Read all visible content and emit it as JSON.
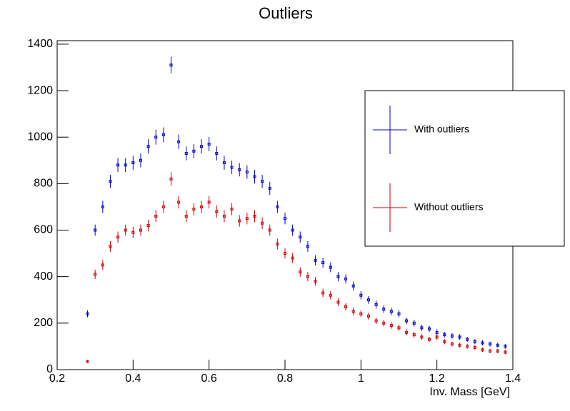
{
  "chart_data": {
    "type": "errorbar",
    "title": "Outliers",
    "x_label": "Inv. Mass [GeV]",
    "x": [
      0.28,
      0.3,
      0.32,
      0.34,
      0.36,
      0.38,
      0.4,
      0.42,
      0.44,
      0.46,
      0.48,
      0.5,
      0.52,
      0.54,
      0.56,
      0.58,
      0.6,
      0.62,
      0.64,
      0.66,
      0.68,
      0.7,
      0.72,
      0.74,
      0.76,
      0.78,
      0.8,
      0.82,
      0.84,
      0.86,
      0.88,
      0.9,
      0.92,
      0.94,
      0.96,
      0.98,
      1.0,
      1.02,
      1.04,
      1.06,
      1.08,
      1.1,
      1.12,
      1.14,
      1.16,
      1.18,
      1.2,
      1.22,
      1.24,
      1.26,
      1.28,
      1.3,
      1.32,
      1.34,
      1.36,
      1.38
    ],
    "series": [
      {
        "name": "With outliers",
        "color": "#0000cc",
        "values": [
          240,
          600,
          700,
          810,
          880,
          880,
          890,
          900,
          960,
          1000,
          1010,
          1310,
          980,
          930,
          940,
          960,
          970,
          930,
          890,
          870,
          860,
          850,
          830,
          810,
          780,
          700,
          650,
          600,
          570,
          530,
          470,
          460,
          440,
          400,
          390,
          360,
          320,
          300,
          280,
          260,
          250,
          240,
          210,
          200,
          180,
          175,
          160,
          150,
          145,
          140,
          130,
          120,
          115,
          110,
          105,
          100
        ],
        "errors": [
          15,
          24,
          26,
          28,
          30,
          30,
          30,
          30,
          31,
          32,
          32,
          36,
          31,
          30,
          31,
          31,
          31,
          30,
          30,
          29,
          29,
          29,
          29,
          28,
          28,
          26,
          25,
          24,
          24,
          23,
          22,
          21,
          21,
          20,
          20,
          19,
          18,
          17,
          17,
          16,
          16,
          15,
          14,
          14,
          13,
          13,
          13,
          12,
          12,
          12,
          11,
          11,
          11,
          10,
          10,
          10
        ]
      },
      {
        "name": "Without outliers",
        "color": "#cc0000",
        "values": [
          35,
          410,
          450,
          530,
          570,
          600,
          590,
          600,
          620,
          660,
          700,
          820,
          720,
          660,
          690,
          700,
          720,
          680,
          660,
          690,
          640,
          650,
          660,
          630,
          600,
          540,
          500,
          480,
          420,
          400,
          380,
          330,
          320,
          290,
          270,
          250,
          240,
          230,
          210,
          200,
          190,
          180,
          160,
          150,
          140,
          130,
          140,
          120,
          110,
          105,
          100,
          95,
          85,
          80,
          80,
          75
        ],
        "errors": [
          6,
          20,
          21,
          23,
          24,
          24,
          24,
          24,
          25,
          26,
          26,
          29,
          27,
          26,
          26,
          26,
          27,
          26,
          26,
          26,
          25,
          25,
          26,
          25,
          24,
          23,
          22,
          22,
          20,
          20,
          19,
          18,
          18,
          17,
          16,
          16,
          15,
          15,
          14,
          14,
          14,
          13,
          13,
          12,
          12,
          11,
          12,
          11,
          10,
          10,
          10,
          10,
          9,
          9,
          9,
          9
        ]
      }
    ],
    "xlim": [
      0.2,
      1.4
    ],
    "xticks": [
      0.2,
      0.4,
      0.6,
      0.8,
      1,
      1.2,
      1.4
    ],
    "ylim": [
      0,
      1415
    ],
    "yticks": [
      0,
      200,
      400,
      600,
      800,
      1000,
      1200,
      1400
    ]
  }
}
